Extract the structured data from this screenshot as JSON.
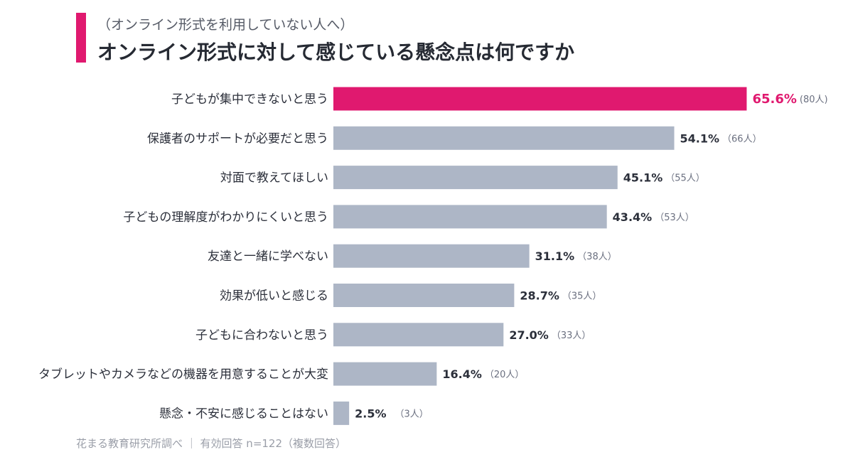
{
  "header": {
    "subtitle": "（オンライン形式を利用していない人へ）",
    "title": "オンライン形式に対して感じている懸念点は何ですか"
  },
  "footnote": "花まる教育研究所調べ ｜ 有効回答 n=122（複数回答）",
  "colors": {
    "accent": "#e0196f",
    "bar": "#adb6c6"
  },
  "chart_data": {
    "type": "bar",
    "orientation": "horizontal",
    "title": "オンライン形式に対して感じている懸念点は何ですか",
    "subtitle": "（オンライン形式を利用していない人へ）",
    "unit": "%",
    "categories": [
      "子どもが集中できないと思う",
      "保護者のサポートが必要だと思う",
      "対面で教えてほしい",
      "子どもの理解度がわかりにくいと思う",
      "友達と一緒に学べない",
      "効果が低いと感じる",
      "子どもに合わないと思う",
      "タブレットやカメラなどの機器を用意することが大変",
      "懸念・不安に感じることはない"
    ],
    "values": [
      65.6,
      54.1,
      45.1,
      43.4,
      31.1,
      28.7,
      27.0,
      16.4,
      2.5
    ],
    "value_labels": [
      "65.6%",
      "54.1%",
      "45.1%",
      "43.4%",
      "31.1%",
      "28.7%",
      "27.0%",
      "16.4%",
      "2.5%"
    ],
    "counts": [
      "(80人)",
      "（66人）",
      "（55人）",
      "（53人）",
      "（38人）",
      "（35人）",
      "（33人）",
      "（20人）",
      "（3人）"
    ],
    "highlight_index": 0,
    "xlim": [
      0,
      100
    ]
  }
}
